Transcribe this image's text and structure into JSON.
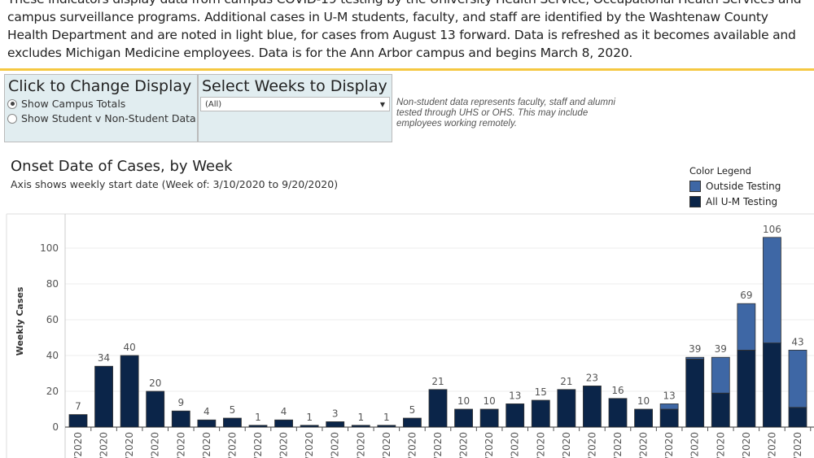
{
  "intro": "These indicators display data from campus COVID-19 testing by the University Health Service, Occupational Health Services and campus surveillance programs. Additional cases in U-M students, faculty, and staff are identified by the Washtenaw County Health Department and are noted in light blue, for cases from August 13 forward. Data is refreshed as it becomes available and excludes Michigan Medicine employees. Data is for the Ann Arbor campus and begins March 8, 2020.",
  "display_panel": {
    "title": "Click to Change Display",
    "options": [
      "Show Campus Totals",
      "Show Student v Non-Student Data"
    ],
    "selected": 0
  },
  "weeks_panel": {
    "title": "Select Weeks to Display",
    "value": "(All)"
  },
  "note": "Non-student data represents faculty, staff and alumni tested through UHS or OHS.  This may include employees working remotely.",
  "colors": {
    "outside": "#3e67a5",
    "um": "#0b2549"
  },
  "chart_data": {
    "type": "bar",
    "stacked": true,
    "title": "Onset Date of Cases, by Week",
    "subtitle": "Axis shows weekly start date (Week of: 3/10/2020 to 9/20/2020)",
    "ylabel": "Weekly Cases",
    "ylim": [
      0,
      115
    ],
    "yticks": [
      0,
      20,
      40,
      60,
      80,
      100
    ],
    "legend_title": "Color Legend",
    "legend_position": "top-right",
    "categories": [
      "/2020",
      "/2020",
      "/2020",
      "/2020",
      "/2020",
      "/2020",
      "/2020",
      "/2020",
      "/2020",
      "/2020",
      "/2020",
      "/2020",
      "/2020",
      "/2020",
      "/2020",
      "/2020",
      "/2020",
      "/2020",
      "/2020",
      "/2020",
      "/2020",
      "/2020",
      "/2020",
      "/2020",
      "/2020",
      "/2020",
      "/2020",
      "/2020",
      "/2020"
    ],
    "totals": [
      7,
      34,
      40,
      20,
      9,
      4,
      5,
      1,
      4,
      1,
      3,
      1,
      1,
      5,
      21,
      10,
      10,
      13,
      15,
      21,
      23,
      16,
      10,
      13,
      39,
      39,
      69,
      106,
      43
    ],
    "series": [
      {
        "name": "All U-M Testing",
        "values": [
          7,
          34,
          40,
          20,
          9,
          4,
          5,
          1,
          4,
          1,
          3,
          1,
          1,
          5,
          21,
          10,
          10,
          13,
          15,
          21,
          23,
          16,
          10,
          10,
          38,
          19,
          43,
          47,
          11
        ]
      },
      {
        "name": "Outside Testing",
        "values": [
          0,
          0,
          0,
          0,
          0,
          0,
          0,
          0,
          0,
          0,
          0,
          0,
          0,
          0,
          0,
          0,
          0,
          0,
          0,
          0,
          0,
          0,
          0,
          3,
          1,
          20,
          26,
          59,
          32
        ]
      }
    ]
  }
}
